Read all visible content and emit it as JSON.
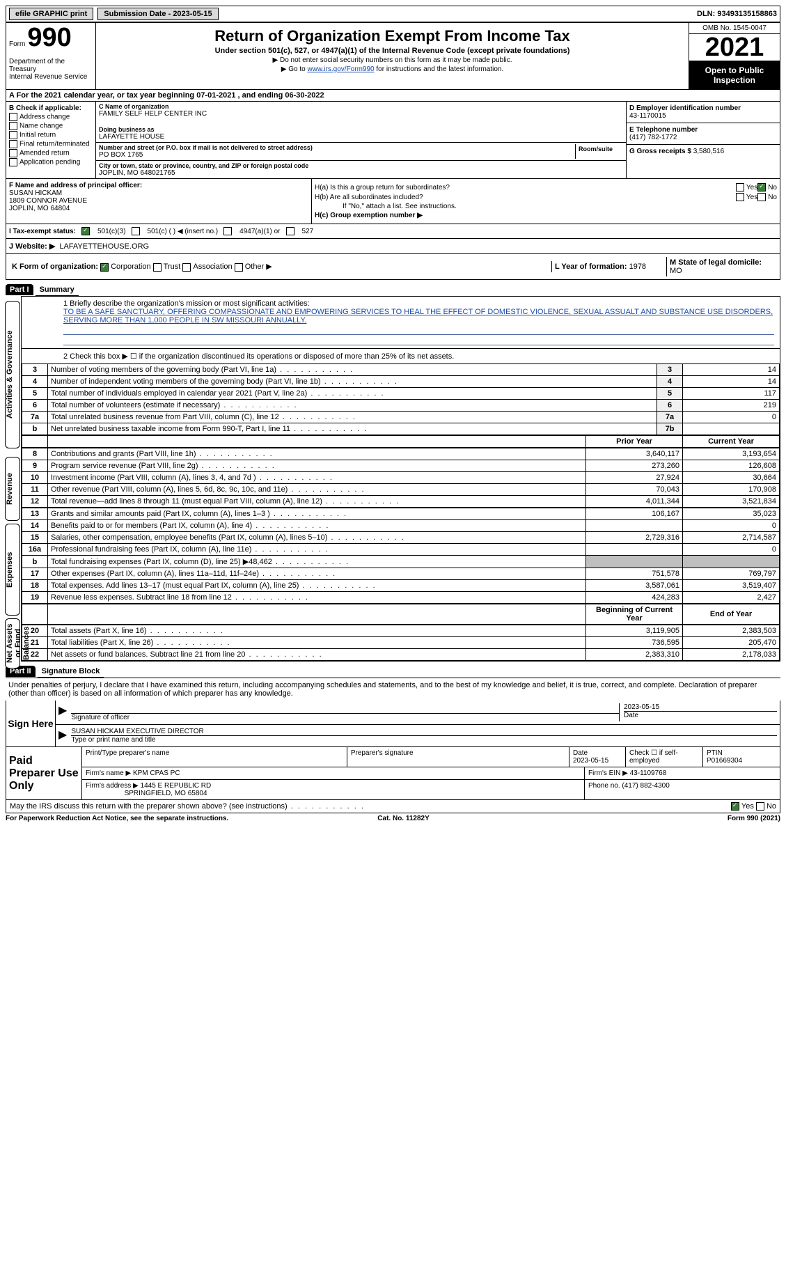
{
  "topbar": {
    "efile": "efile GRAPHIC print",
    "submission": "Submission Date - 2023-05-15",
    "dln": "DLN: 93493135158863"
  },
  "header": {
    "form_word": "Form",
    "form_num": "990",
    "title": "Return of Organization Exempt From Income Tax",
    "sub": "Under section 501(c), 527, or 4947(a)(1) of the Internal Revenue Code (except private foundations)",
    "note1": "▶ Do not enter social security numbers on this form as it may be made public.",
    "note2_pre": "▶ Go to ",
    "note2_link": "www.irs.gov/Form990",
    "note2_post": " for instructions and the latest information.",
    "dept": "Department of the Treasury\nInternal Revenue Service",
    "omb": "OMB No. 1545-0047",
    "year": "2021",
    "open": "Open to Public Inspection"
  },
  "row_a": "A For the 2021 calendar year, or tax year beginning 07-01-2021   , and ending 06-30-2022",
  "box_b": {
    "header": "B Check if applicable:",
    "items": [
      "Address change",
      "Name change",
      "Initial return",
      "Final return/terminated",
      "Amended return",
      "Application pending"
    ]
  },
  "box_c": {
    "name_lbl": "C Name of organization",
    "name": "FAMILY SELF HELP CENTER INC",
    "dba_lbl": "Doing business as",
    "dba": "LAFAYETTE HOUSE",
    "street_lbl": "Number and street (or P.O. box if mail is not delivered to street address)",
    "street": "PO BOX 1765",
    "room_lbl": "Room/suite",
    "room": "",
    "city_lbl": "City or town, state or province, country, and ZIP or foreign postal code",
    "city": "JOPLIN, MO  648021765"
  },
  "box_d": {
    "ein_lbl": "D Employer identification number",
    "ein": "43-1170015",
    "tel_lbl": "E Telephone number",
    "tel": "(417) 782-1772",
    "gross_lbl": "G Gross receipts $",
    "gross": "3,580,516"
  },
  "box_f": {
    "lbl": "F Name and address of principal officer:",
    "name": "SUSAN HICKAM",
    "addr1": "1809 CONNOR AVENUE",
    "addr2": "JOPLIN, MO  64804"
  },
  "box_h": {
    "a_lbl": "H(a)  Is this a group return for subordinates?",
    "b_lbl": "H(b)  Are all subordinates included?",
    "b_note": "If \"No,\" attach a list. See instructions.",
    "c_lbl": "H(c)  Group exemption number ▶"
  },
  "row_i": {
    "lbl": "I  Tax-exempt status:",
    "opt1": "501(c)(3)",
    "opt2": "501(c) (  ) ◀ (insert no.)",
    "opt3": "4947(a)(1) or",
    "opt4": "527"
  },
  "row_j": {
    "lbl": "J  Website: ▶",
    "val": "LAFAYETTEHOUSE.ORG"
  },
  "row_k": {
    "lbl": "K Form of organization:",
    "opts": [
      "Corporation",
      "Trust",
      "Association",
      "Other ▶"
    ],
    "l_lbl": "L Year of formation:",
    "l_val": "1978",
    "m_lbl": "M State of legal domicile:",
    "m_val": "MO"
  },
  "part1": {
    "label": "Part I",
    "title": "Summary",
    "line1_lbl": "1  Briefly describe the organization's mission or most significant activities:",
    "line1_val": "TO BE A SAFE SANCTUARY, OFFERING COMPASSIONATE AND EMPOWERING SERVICES TO HEAL THE EFFECT OF DOMESTIC VIOLENCE, SEXUAL ASSUALT AND SUBSTANCE USE DISORDERS, SERVING MORE THAN 1,000 PEOPLE IN SW MISSOURI ANNUALLY.",
    "line2": "2  Check this box ▶ ☐  if the organization discontinued its operations or disposed of more than 25% of its net assets.",
    "vtabs": {
      "gov": "Activities & Governance",
      "rev": "Revenue",
      "exp": "Expenses",
      "net": "Net Assets or Fund Balances"
    },
    "gov_lines": [
      {
        "n": "3",
        "d": "Number of voting members of the governing body (Part VI, line 1a)",
        "box": "3",
        "v": "14"
      },
      {
        "n": "4",
        "d": "Number of independent voting members of the governing body (Part VI, line 1b)",
        "box": "4",
        "v": "14"
      },
      {
        "n": "5",
        "d": "Total number of individuals employed in calendar year 2021 (Part V, line 2a)",
        "box": "5",
        "v": "117"
      },
      {
        "n": "6",
        "d": "Total number of volunteers (estimate if necessary)",
        "box": "6",
        "v": "219"
      },
      {
        "n": "7a",
        "d": "Total unrelated business revenue from Part VIII, column (C), line 12",
        "box": "7a",
        "v": "0"
      },
      {
        "n": " b",
        "d": "Net unrelated business taxable income from Form 990-T, Part I, line 11",
        "box": "7b",
        "v": ""
      }
    ],
    "col_headers": {
      "prior": "Prior Year",
      "current": "Current Year",
      "begin": "Beginning of Current Year",
      "end": "End of Year"
    },
    "rev_lines": [
      {
        "n": "8",
        "d": "Contributions and grants (Part VIII, line 1h)",
        "p": "3,640,117",
        "c": "3,193,654"
      },
      {
        "n": "9",
        "d": "Program service revenue (Part VIII, line 2g)",
        "p": "273,260",
        "c": "126,608"
      },
      {
        "n": "10",
        "d": "Investment income (Part VIII, column (A), lines 3, 4, and 7d )",
        "p": "27,924",
        "c": "30,664"
      },
      {
        "n": "11",
        "d": "Other revenue (Part VIII, column (A), lines 5, 6d, 8c, 9c, 10c, and 11e)",
        "p": "70,043",
        "c": "170,908"
      },
      {
        "n": "12",
        "d": "Total revenue—add lines 8 through 11 (must equal Part VIII, column (A), line 12)",
        "p": "4,011,344",
        "c": "3,521,834"
      }
    ],
    "exp_lines": [
      {
        "n": "13",
        "d": "Grants and similar amounts paid (Part IX, column (A), lines 1–3 )",
        "p": "106,167",
        "c": "35,023"
      },
      {
        "n": "14",
        "d": "Benefits paid to or for members (Part IX, column (A), line 4)",
        "p": "",
        "c": "0"
      },
      {
        "n": "15",
        "d": "Salaries, other compensation, employee benefits (Part IX, column (A), lines 5–10)",
        "p": "2,729,316",
        "c": "2,714,587"
      },
      {
        "n": "16a",
        "d": "Professional fundraising fees (Part IX, column (A), line 11e)",
        "p": "",
        "c": "0"
      },
      {
        "n": "  b",
        "d": "Total fundraising expenses (Part IX, column (D), line 25) ▶48,462",
        "p": "grey",
        "c": "grey"
      },
      {
        "n": "17",
        "d": "Other expenses (Part IX, column (A), lines 11a–11d, 11f–24e)",
        "p": "751,578",
        "c": "769,797"
      },
      {
        "n": "18",
        "d": "Total expenses. Add lines 13–17 (must equal Part IX, column (A), line 25)",
        "p": "3,587,061",
        "c": "3,519,407"
      },
      {
        "n": "19",
        "d": "Revenue less expenses. Subtract line 18 from line 12",
        "p": "424,283",
        "c": "2,427"
      }
    ],
    "net_lines": [
      {
        "n": "20",
        "d": "Total assets (Part X, line 16)",
        "p": "3,119,905",
        "c": "2,383,503"
      },
      {
        "n": "21",
        "d": "Total liabilities (Part X, line 26)",
        "p": "736,595",
        "c": "205,470"
      },
      {
        "n": "22",
        "d": "Net assets or fund balances. Subtract line 21 from line 20",
        "p": "2,383,310",
        "c": "2,178,033"
      }
    ]
  },
  "part2": {
    "label": "Part II",
    "title": "Signature Block",
    "declaration": "Under penalties of perjury, I declare that I have examined this return, including accompanying schedules and statements, and to the best of my knowledge and belief, it is true, correct, and complete. Declaration of preparer (other than officer) is based on all information of which preparer has any knowledge.",
    "sign_here": "Sign Here",
    "sig_officer_lbl": "Signature of officer",
    "sig_date": "2023-05-15",
    "date_lbl": "Date",
    "officer_name": "SUSAN HICKAM  EXECUTIVE DIRECTOR",
    "officer_name_lbl": "Type or print name and title",
    "paid_lbl": "Paid Preparer Use Only",
    "prep_name_lbl": "Print/Type preparer's name",
    "prep_sig_lbl": "Preparer's signature",
    "prep_date_lbl": "Date",
    "prep_date": "2023-05-15",
    "check_if_lbl": "Check ☐ if self-employed",
    "ptin_lbl": "PTIN",
    "ptin": "P01669304",
    "firm_name_lbl": "Firm's name      ▶",
    "firm_name": "KPM CPAS PC",
    "firm_ein_lbl": "Firm's EIN ▶",
    "firm_ein": "43-1109768",
    "firm_addr_lbl": "Firm's address ▶",
    "firm_addr": "1445 E REPUBLIC RD",
    "firm_city": "SPRINGFIELD, MO  65804",
    "phone_lbl": "Phone no.",
    "phone": "(417) 882-4300",
    "discuss": "May the IRS discuss this return with the preparer shown above? (see instructions)"
  },
  "footer": {
    "left": "For Paperwork Reduction Act Notice, see the separate instructions.",
    "mid": "Cat. No. 11282Y",
    "right": "Form 990 (2021)"
  }
}
